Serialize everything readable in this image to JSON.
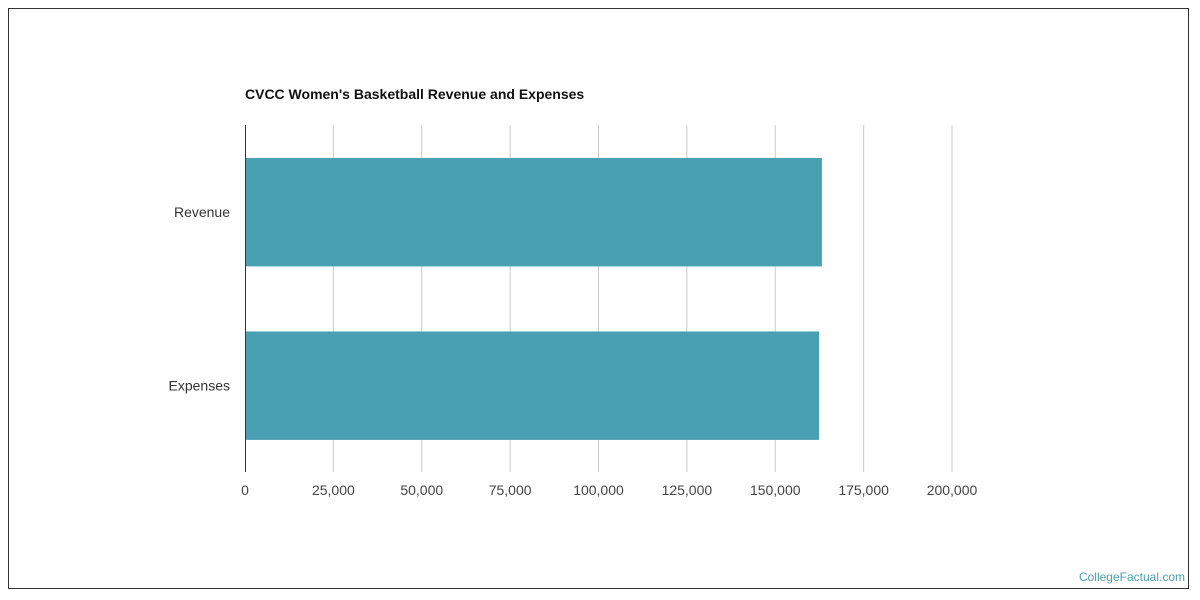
{
  "chart_data": {
    "type": "bar",
    "orientation": "horizontal",
    "title": "CVCC Women's Basketball Revenue and Expenses",
    "categories": [
      "Revenue",
      "Expenses"
    ],
    "values": [
      163200,
      162400
    ],
    "xlabel": "",
    "ylabel": "",
    "xlim": [
      0,
      200000
    ],
    "xticks": [
      0,
      25000,
      50000,
      75000,
      100000,
      125000,
      150000,
      175000,
      200000
    ],
    "xtick_labels": [
      "0",
      "25,000",
      "50,000",
      "75,000",
      "100,000",
      "125,000",
      "150,000",
      "175,000",
      "200,000"
    ],
    "grid": true,
    "bar_color": "#4aa0b3"
  },
  "credit": "CollegeFactual.com"
}
